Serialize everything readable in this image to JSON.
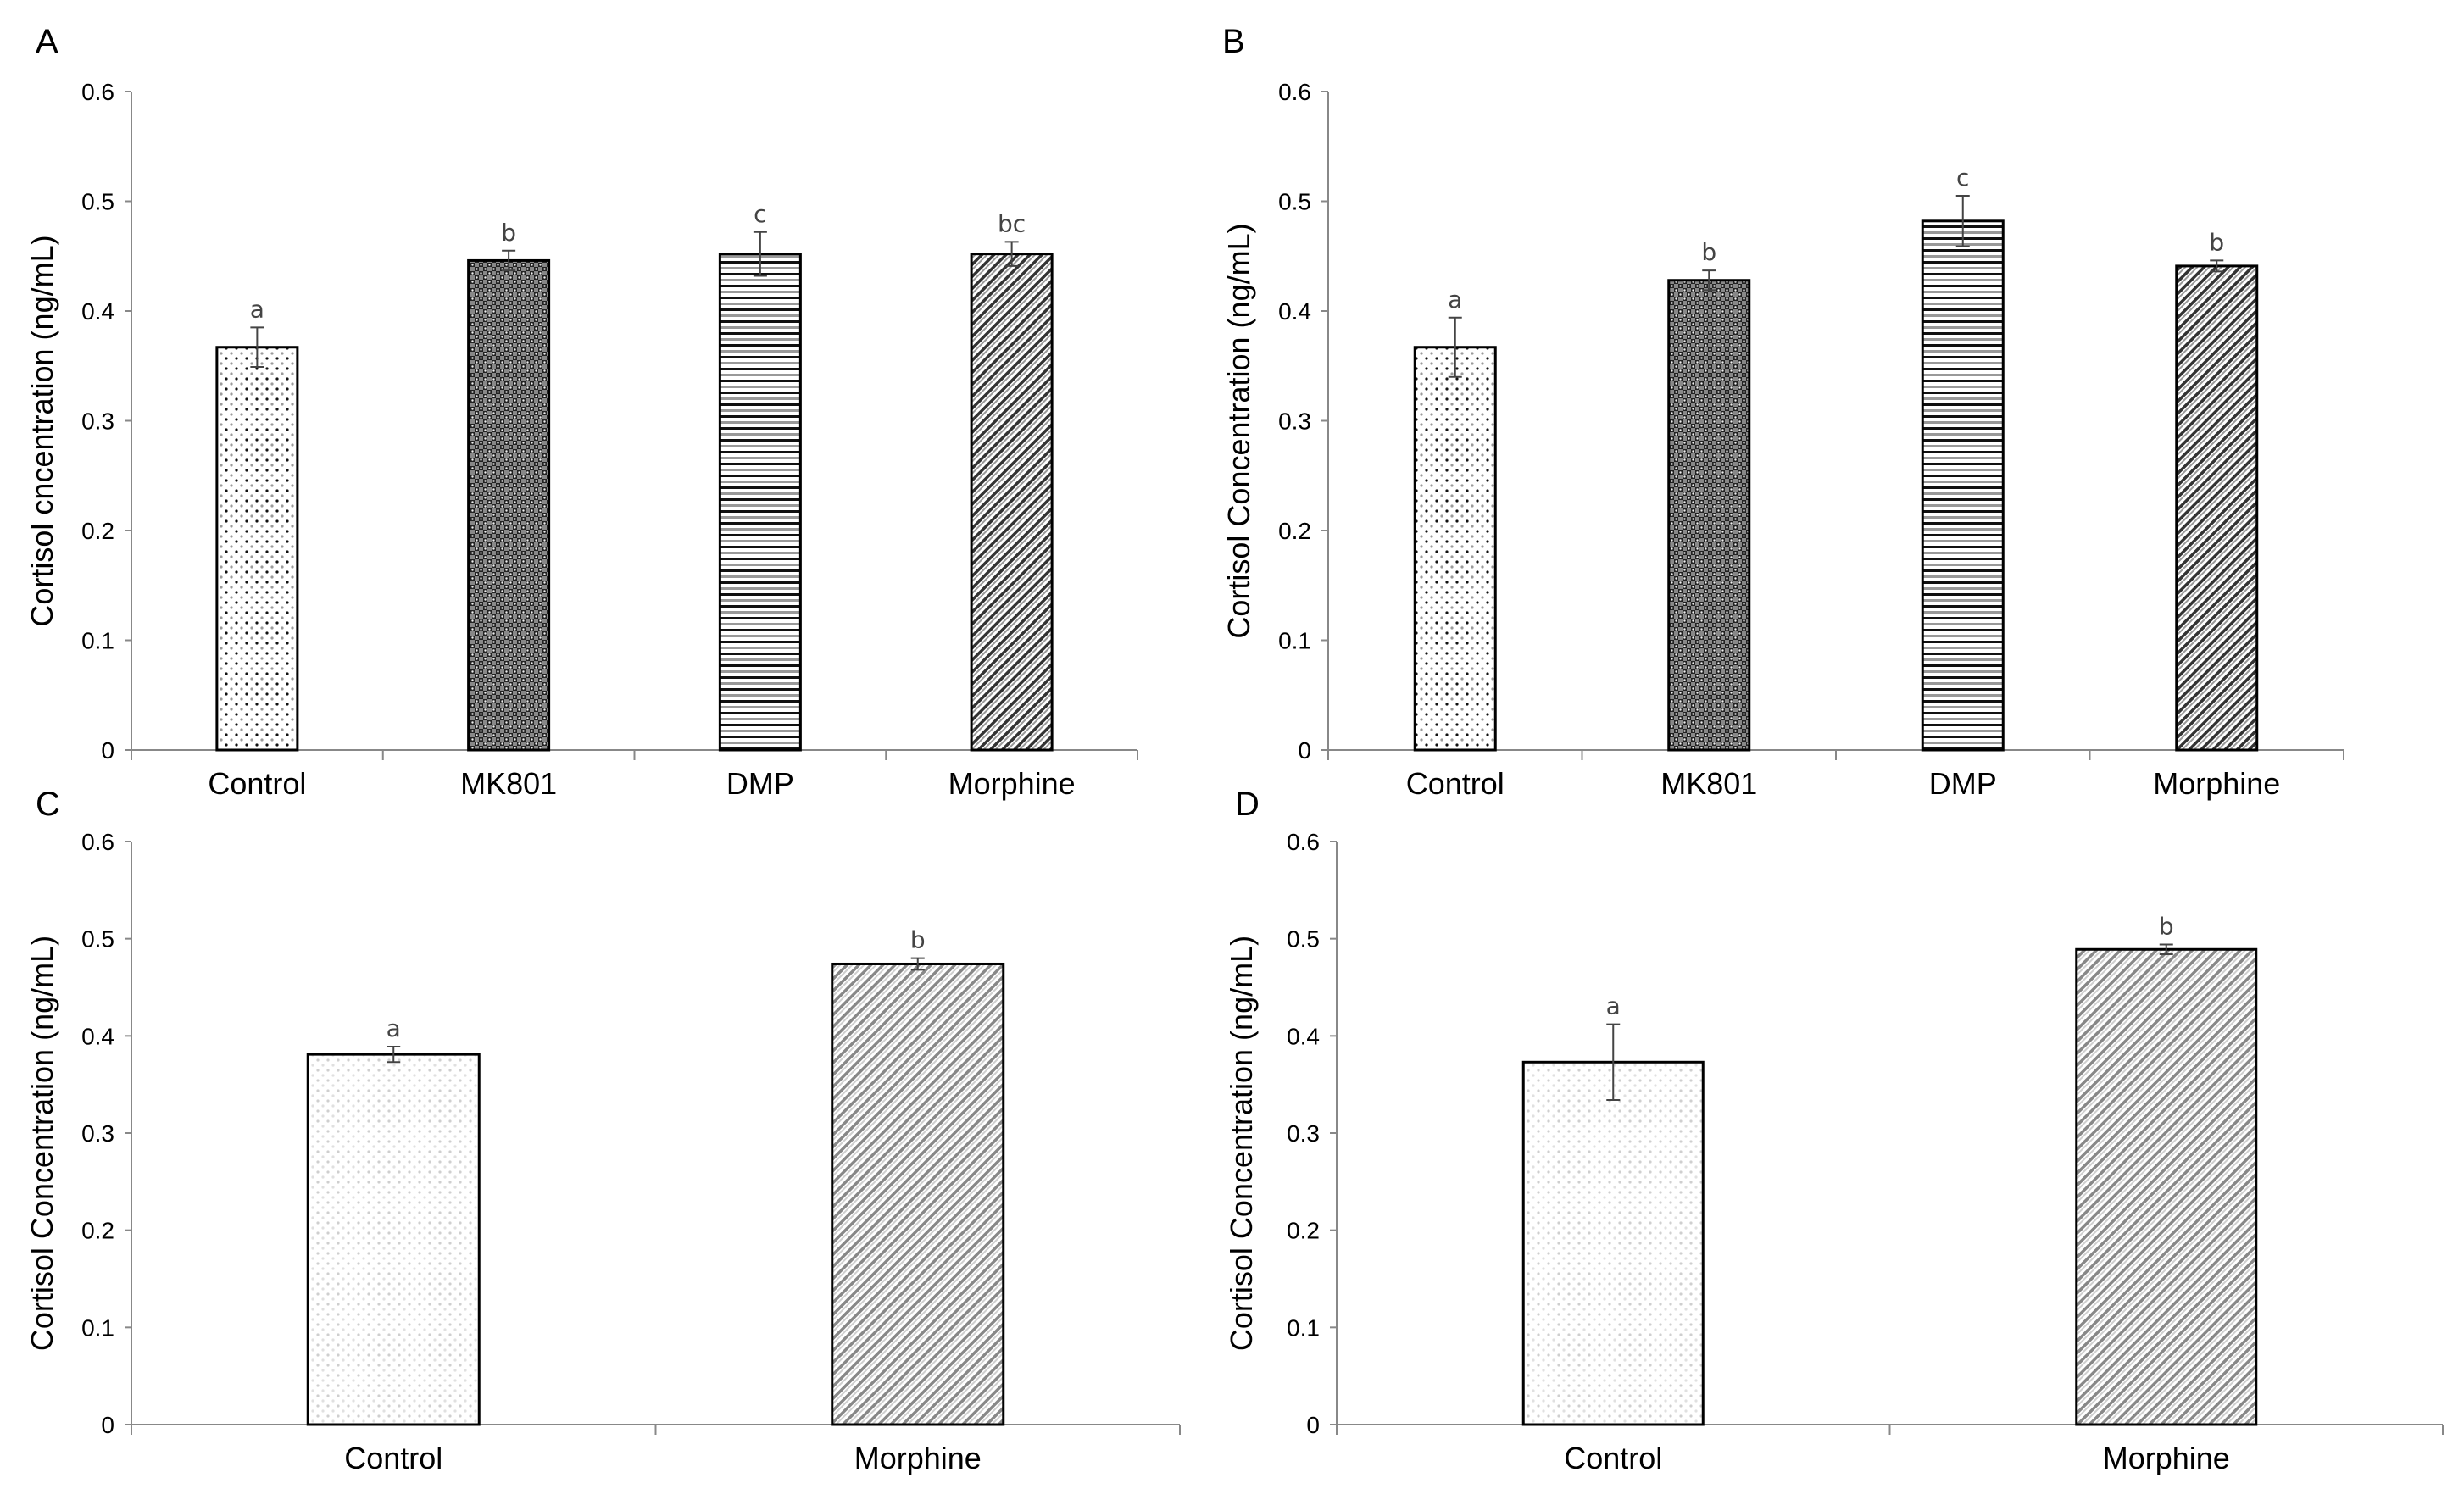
{
  "figure": {
    "panels": [
      "A",
      "B",
      "C",
      "D"
    ]
  },
  "chart_data": [
    {
      "panel": "A",
      "type": "bar",
      "ylabel": "Cortisol cncentration (ng/mL)",
      "xlabel": "",
      "ylim": [
        0,
        0.6
      ],
      "yticks": [
        "0",
        "0.1",
        "0.2",
        "0.3",
        "0.4",
        "0.5",
        "0.6"
      ],
      "categories": [
        "Control",
        "MK801",
        "DMP",
        "Morphine"
      ],
      "values": [
        0.367,
        0.446,
        0.452,
        0.452
      ],
      "errors": [
        0.018,
        0.009,
        0.02,
        0.011
      ],
      "significance": [
        "a",
        "b",
        "c",
        "bc"
      ],
      "patterns": [
        "dots",
        "checker",
        "hlines",
        "diag"
      ]
    },
    {
      "panel": "B",
      "type": "bar",
      "ylabel": "Cortisol Concentration (ng/mL)",
      "xlabel": "",
      "ylim": [
        0,
        0.6
      ],
      "yticks": [
        "0",
        "0.1",
        "0.2",
        "0.3",
        "0.4",
        "0.5",
        "0.6"
      ],
      "categories": [
        "Control",
        "MK801",
        "DMP",
        "Morphine"
      ],
      "values": [
        0.367,
        0.428,
        0.482,
        0.441
      ],
      "errors": [
        0.027,
        0.009,
        0.023,
        0.005
      ],
      "significance": [
        "a",
        "b",
        "c",
        "b"
      ],
      "patterns": [
        "dots",
        "checker",
        "hlines",
        "diag"
      ]
    },
    {
      "panel": "C",
      "type": "bar",
      "ylabel": "Cortisol Concentration (ng/mL)",
      "xlabel": "",
      "ylim": [
        0,
        0.6
      ],
      "yticks": [
        "0",
        "0.1",
        "0.2",
        "0.3",
        "0.4",
        "0.5",
        "0.6"
      ],
      "categories": [
        "Control",
        "Morphine"
      ],
      "values": [
        0.381,
        0.474
      ],
      "errors": [
        0.008,
        0.006
      ],
      "significance": [
        "a",
        "b"
      ],
      "patterns": [
        "lightdots",
        "lightdiag"
      ]
    },
    {
      "panel": "D",
      "type": "bar",
      "ylabel": "Cortisol Concentration (ng/mL)",
      "xlabel": "",
      "ylim": [
        0,
        0.6
      ],
      "yticks": [
        "0",
        "0.1",
        "0.2",
        "0.3",
        "0.4",
        "0.5",
        "0.6"
      ],
      "categories": [
        "Control",
        "Morphine"
      ],
      "values": [
        0.373,
        0.489
      ],
      "errors": [
        0.039,
        0.005
      ],
      "significance": [
        "a",
        "b"
      ],
      "patterns": [
        "lightdots",
        "lightdiag"
      ]
    }
  ]
}
